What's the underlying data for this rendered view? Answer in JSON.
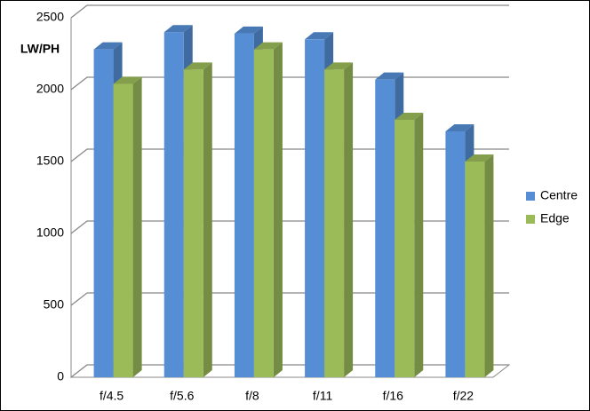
{
  "chart_data": {
    "type": "bar3d",
    "y_label": "LW/PH",
    "categories": [
      "f/4.5",
      "f/5.6",
      "f/8",
      "f/11",
      "f/16",
      "f/22"
    ],
    "series": [
      {
        "name": "Centre",
        "color": "#558ed5",
        "values": [
          2280,
          2400,
          2390,
          2350,
          2070,
          1710
        ]
      },
      {
        "name": "Edge",
        "color": "#9bbb59",
        "values": [
          2040,
          2140,
          2280,
          2140,
          1790,
          1500
        ]
      }
    ],
    "ylim": [
      0,
      2500
    ],
    "yticks": [
      0,
      500,
      1000,
      1500,
      2000,
      2500
    ],
    "grid": true,
    "legend": "right"
  }
}
